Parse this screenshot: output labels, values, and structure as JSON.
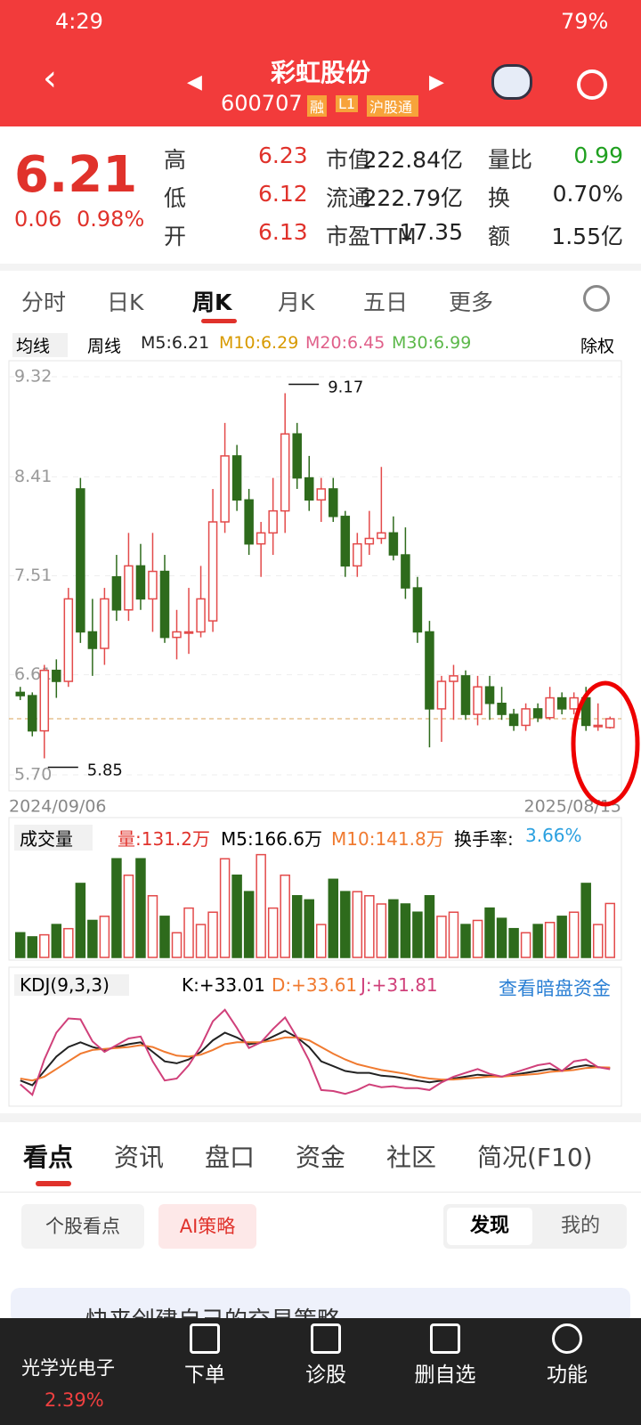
{
  "status": {
    "time": "4:29",
    "battery": "79%"
  },
  "header": {
    "title": "彩虹股份",
    "code": "600707",
    "badges": [
      "融",
      "L1",
      "沪股通"
    ]
  },
  "quote": {
    "price": "6.21",
    "change": "0.06",
    "pct": "0.98%",
    "stats": [
      [
        "高",
        "6.23"
      ],
      [
        "低",
        "6.12"
      ],
      [
        "开",
        "6.13"
      ],
      [
        "市值",
        "222.84亿"
      ],
      [
        "流通",
        "222.79亿"
      ],
      [
        "市盈TTM",
        "17.35"
      ],
      [
        "量比",
        "0.99"
      ],
      [
        "换",
        "0.70%"
      ],
      [
        "额",
        "1.55亿"
      ]
    ]
  },
  "tabs": [
    "分时",
    "日K",
    "周K",
    "月K",
    "五日",
    "更多"
  ],
  "ma_legend": {
    "selector": "均线",
    "period": "周线",
    "m5": "M5:6.21",
    "m10": "M10:6.29",
    "m20": "M20:6.45",
    "m30": "M30:6.99",
    "adjust": "除权"
  },
  "volume_legend": {
    "title": "成交量",
    "vol": "量:131.2万",
    "m5": "M5:166.6万",
    "m10": "M10:141.8万",
    "turnover": "换手率:",
    "turnover_value": "3.66%"
  },
  "kdj_legend": {
    "title": "KDJ(9,3,3)",
    "k": "K:+33.01",
    "d": "D:+33.61",
    "j": "J:+31.81",
    "link": "查看暗盘资金"
  },
  "chart_data": [
    {
      "type": "candlestick",
      "x_start": "2024/09/06",
      "x_end": "2025/08/15",
      "ylim": [
        5.7,
        9.32
      ],
      "yticks": [
        9.32,
        8.41,
        7.51,
        6.61,
        {
          "value": 5.7,
          "label": "5.70"
        }
      ],
      "annotations": [
        {
          "text": "9.17",
          "value": 9.17
        },
        {
          "text": "5.85",
          "value": 5.85
        }
      ],
      "open": [
        6.45,
        6.42,
        6.1,
        6.65,
        6.55,
        8.3,
        7.0,
        6.85,
        7.5,
        7.2,
        7.6,
        7.3,
        7.55,
        6.95,
        7.0,
        7.0,
        7.1,
        8.0,
        8.6,
        8.2,
        7.8,
        7.9,
        8.1,
        8.8,
        8.4,
        8.2,
        8.3,
        8.05,
        7.6,
        7.8,
        7.85,
        7.9,
        7.7,
        7.4,
        7.0,
        6.3,
        6.55,
        6.6,
        6.25,
        6.5,
        6.35,
        6.25,
        6.15,
        6.3,
        6.22,
        6.4,
        6.3,
        6.4,
        6.15,
        6.13
      ],
      "high": [
        6.5,
        6.45,
        6.7,
        6.75,
        7.4,
        8.4,
        7.3,
        7.4,
        7.7,
        7.9,
        7.8,
        7.9,
        7.7,
        7.2,
        7.4,
        7.6,
        8.3,
        8.9,
        8.7,
        8.3,
        8.0,
        8.4,
        9.17,
        8.9,
        8.6,
        8.4,
        8.4,
        8.1,
        7.9,
        8.1,
        8.5,
        8.05,
        7.95,
        7.5,
        7.1,
        6.6,
        6.7,
        6.65,
        6.6,
        6.6,
        6.5,
        6.3,
        6.35,
        6.35,
        6.5,
        6.45,
        6.45,
        6.5,
        6.35,
        6.23
      ],
      "low": [
        6.38,
        6.05,
        5.85,
        6.4,
        6.5,
        6.9,
        6.6,
        6.7,
        7.1,
        7.1,
        7.2,
        7.0,
        6.9,
        6.75,
        6.8,
        6.95,
        7.0,
        7.9,
        8.1,
        7.7,
        7.5,
        7.7,
        7.9,
        8.3,
        8.1,
        8.0,
        8.0,
        7.5,
        7.5,
        7.7,
        7.8,
        7.65,
        7.3,
        6.9,
        5.95,
        6.0,
        6.2,
        6.2,
        6.15,
        6.2,
        6.2,
        6.1,
        6.1,
        6.18,
        6.2,
        6.25,
        6.25,
        6.1,
        6.1,
        6.12
      ],
      "close": [
        6.42,
        6.1,
        6.65,
        6.55,
        7.3,
        7.0,
        6.85,
        7.3,
        7.2,
        7.6,
        7.3,
        7.55,
        6.95,
        7.0,
        7.0,
        7.3,
        8.0,
        8.6,
        8.2,
        7.8,
        7.9,
        8.1,
        8.8,
        8.4,
        8.2,
        8.3,
        8.05,
        7.6,
        7.8,
        7.85,
        7.9,
        7.7,
        7.4,
        7.0,
        6.3,
        6.55,
        6.6,
        6.25,
        6.5,
        6.35,
        6.25,
        6.15,
        6.3,
        6.22,
        6.4,
        6.3,
        6.4,
        6.15,
        6.15,
        6.21
      ]
    },
    {
      "type": "bar",
      "ylim": [
        0,
        260
      ],
      "values": [
        60,
        50,
        55,
        80,
        70,
        180,
        90,
        100,
        240,
        200,
        240,
        150,
        100,
        60,
        120,
        80,
        110,
        240,
        200,
        160,
        250,
        120,
        200,
        150,
        140,
        80,
        190,
        160,
        160,
        150,
        130,
        140,
        130,
        110,
        150,
        100,
        110,
        80,
        90,
        120,
        95,
        70,
        60,
        80,
        85,
        100,
        110,
        180,
        80,
        131.2
      ]
    },
    {
      "type": "line",
      "ylim": [
        -5,
        105
      ],
      "series": [
        {
          "name": "K",
          "color": "#222222",
          "values": [
            20,
            15,
            30,
            45,
            55,
            60,
            55,
            52,
            55,
            58,
            60,
            50,
            40,
            38,
            42,
            50,
            62,
            70,
            65,
            58,
            60,
            66,
            72,
            65,
            55,
            40,
            35,
            30,
            28,
            28,
            25,
            24,
            22,
            20,
            18,
            20,
            22,
            24,
            26,
            25,
            24,
            26,
            28,
            30,
            32,
            30,
            34,
            36,
            34,
            33.01
          ]
        },
        {
          "name": "D",
          "color": "#f07a30",
          "values": [
            22,
            20,
            24,
            32,
            40,
            48,
            52,
            53,
            54,
            55,
            57,
            55,
            50,
            46,
            45,
            47,
            52,
            58,
            60,
            60,
            60,
            62,
            65,
            65,
            62,
            55,
            48,
            42,
            37,
            34,
            31,
            29,
            27,
            24,
            22,
            21,
            21,
            22,
            23,
            24,
            24,
            25,
            26,
            27,
            29,
            30,
            31,
            33,
            34,
            33.61
          ]
        },
        {
          "name": "J",
          "color": "#d0407a",
          "values": [
            16,
            5,
            42,
            70,
            85,
            84,
            61,
            50,
            57,
            64,
            66,
            40,
            20,
            22,
            36,
            56,
            82,
            94,
            75,
            54,
            60,
            74,
            86,
            65,
            41,
            10,
            9,
            6,
            10,
            16,
            13,
            14,
            12,
            12,
            10,
            18,
            24,
            28,
            32,
            27,
            24,
            28,
            32,
            36,
            38,
            30,
            40,
            42,
            34,
            31.81
          ]
        }
      ]
    }
  ],
  "news_tabs": [
    "看点",
    "资讯",
    "盘口",
    "资金",
    "社区",
    "简况(F10)"
  ],
  "chips": [
    "个股看点",
    "AI策略"
  ],
  "toggle": [
    "发现",
    "我的"
  ],
  "card_text": "快来创建自己的交易策略",
  "bottom_nav": {
    "sector": "光学光电子",
    "sector_pct": "2.39%",
    "items": [
      "下单",
      "诊股",
      "删自选",
      "功能"
    ]
  }
}
